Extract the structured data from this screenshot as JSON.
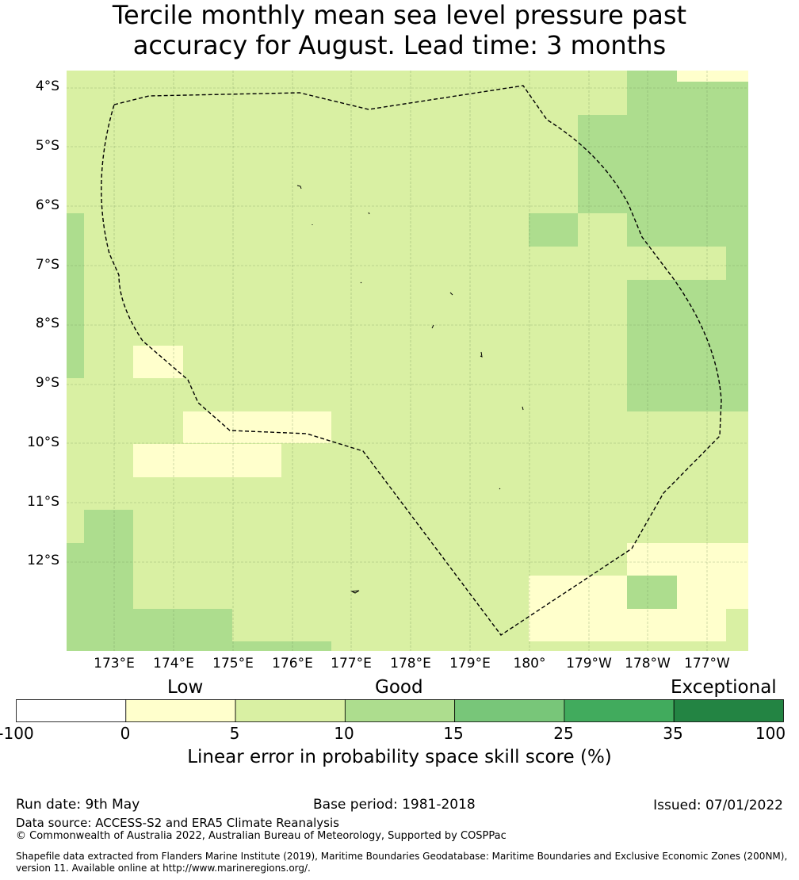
{
  "title_line1": "Tercile monthly mean sea level pressure past",
  "title_line2": "accuracy for August. Lead time: 3 months",
  "map": {
    "lat_labels": [
      "4°S",
      "5°S",
      "6°S",
      "7°S",
      "8°S",
      "9°S",
      "10°S",
      "11°S",
      "12°S"
    ],
    "lon_labels": [
      "173°E",
      "174°E",
      "175°E",
      "176°E",
      "177°E",
      "178°E",
      "179°E",
      "180°",
      "179°W",
      "178°W",
      "177°W"
    ],
    "boundary": "Exclusive Economic Zone (dashed line)"
  },
  "colorbar": {
    "categories": [
      "Low",
      "Good",
      "Exceptional"
    ],
    "ticks": [
      "-100",
      "0",
      "5",
      "10",
      "15",
      "25",
      "35",
      "100"
    ],
    "colors": [
      "#ffffff",
      "#ffffcc",
      "#d9f0a3",
      "#addd8e",
      "#78c679",
      "#41ab5d",
      "#238443"
    ],
    "label": "Linear error in probability space skill score (%)"
  },
  "footer": {
    "run_date": "Run date: 9th May",
    "base_period": "Base period: 1981-2018",
    "issued": "Issued: 07/01/2022",
    "data_source": "Data source: ACCESS-S2 and ERA5 Climate Reanalysis",
    "copyright": "© Commonwealth of Australia 2022, Australian Bureau of Meteorology, Supported by COSPPac",
    "shapefile_line1": "Shapefile data extracted from Flanders Marine Institute (2019), Maritime Boundaries Geodatabase: Maritime Boundaries and Exclusive Economic Zones (200NM),",
    "shapefile_line2": "version 11. Available online at http://www.marineregions.org/."
  }
}
